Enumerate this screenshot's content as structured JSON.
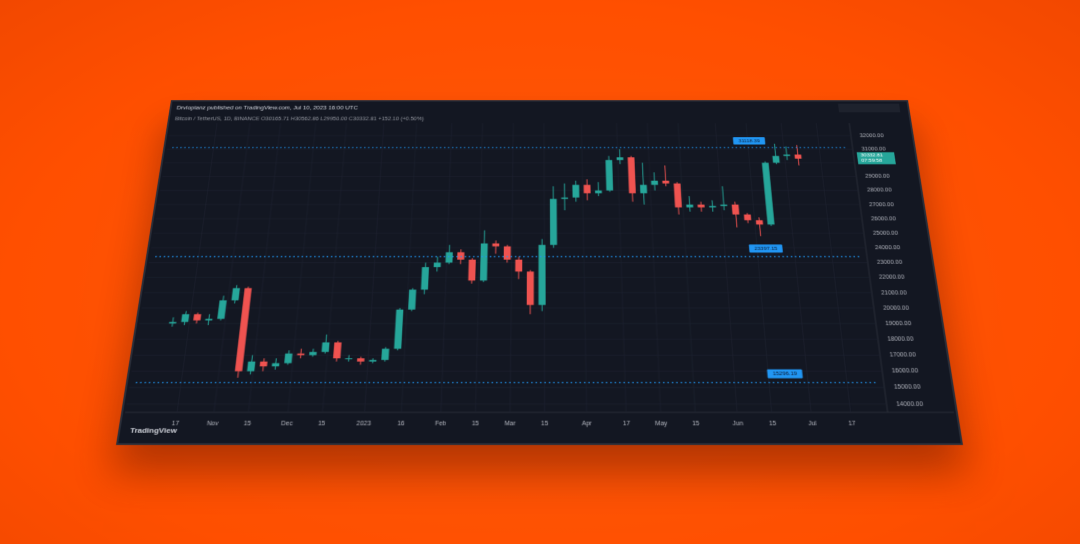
{
  "chart_data": {
    "type": "candlestick",
    "title": "Drvlopianz published on TradingView.com, Jul 10, 2023 16:00 UTC",
    "subtitle": "Bitcoin / TetherUS, 1D, BINANCE  O30165.71 H30562.86 L29950.00 C30332.81 +152.10 (+0.50%)",
    "watermark": "TradingView",
    "up_color": "#26a69a",
    "down_color": "#ef5350",
    "level_color": "#2196f3",
    "grid": true,
    "x": [
      0,
      5,
      10,
      15,
      20,
      25,
      30,
      35,
      40,
      45,
      50,
      55,
      60,
      65,
      70,
      75,
      80,
      85,
      90,
      95,
      100,
      105,
      110,
      115,
      120,
      125,
      130,
      135,
      140,
      145,
      150,
      155,
      160,
      165,
      170,
      175,
      180,
      185,
      190,
      195,
      200,
      205,
      210,
      215,
      220,
      225,
      230,
      235,
      240,
      245,
      250,
      255,
      260,
      265,
      270
    ],
    "open": [
      19000,
      19100,
      19600,
      19200,
      19300,
      20500,
      21300,
      16000,
      16600,
      16300,
      16500,
      17100,
      17000,
      17200,
      17800,
      16800,
      16800,
      16600,
      16700,
      17400,
      19900,
      21200,
      22700,
      23000,
      23700,
      23200,
      21800,
      24300,
      24100,
      23200,
      22400,
      20200,
      24200,
      27400,
      27500,
      28400,
      27800,
      28000,
      30200,
      30400,
      27800,
      28400,
      28700,
      28500,
      26800,
      27000,
      26800,
      26900,
      27000,
      26300,
      25900,
      25600,
      30000,
      30500,
      30600
    ],
    "high": [
      19400,
      19800,
      19700,
      19600,
      20800,
      21500,
      21400,
      17000,
      16800,
      16800,
      17300,
      17400,
      17400,
      18300,
      17900,
      17000,
      16900,
      16800,
      17500,
      20000,
      21300,
      23000,
      23400,
      24200,
      23900,
      23300,
      25200,
      24500,
      24200,
      23400,
      22500,
      24600,
      28300,
      28500,
      28700,
      28800,
      28600,
      30500,
      31000,
      30500,
      30000,
      29300,
      29800,
      28600,
      27600,
      27200,
      27300,
      28300,
      27200,
      26400,
      26100,
      30100,
      31400,
      31200,
      31300
    ],
    "low": [
      18800,
      18900,
      19000,
      18900,
      19200,
      20300,
      15600,
      15800,
      16000,
      16100,
      16400,
      16800,
      16900,
      17100,
      16600,
      16600,
      16400,
      16500,
      16600,
      17300,
      19800,
      20900,
      22400,
      22900,
      22900,
      21600,
      21700,
      23600,
      23000,
      21900,
      19600,
      19800,
      24000,
      26600,
      27200,
      27300,
      27600,
      27900,
      29900,
      27200,
      27000,
      28000,
      28300,
      26300,
      26500,
      26500,
      26500,
      26600,
      25400,
      25700,
      24800,
      25500,
      29900,
      30200,
      29800
    ],
    "close": [
      19100,
      19600,
      19200,
      19300,
      20500,
      21300,
      16000,
      16600,
      16300,
      16500,
      17100,
      17000,
      17200,
      17800,
      16800,
      16800,
      16600,
      16700,
      17400,
      19900,
      21200,
      22700,
      23000,
      23700,
      23200,
      21800,
      24300,
      24100,
      23200,
      22400,
      20200,
      24200,
      27400,
      27500,
      28400,
      27800,
      28000,
      30200,
      30400,
      27800,
      28400,
      28700,
      28500,
      26800,
      27000,
      26800,
      26900,
      27000,
      26300,
      25900,
      25600,
      30000,
      30500,
      30600,
      30300
    ],
    "xlim": [
      -14,
      295
    ],
    "xticks": [
      {
        "value": 7,
        "label": "17"
      },
      {
        "value": 22,
        "label": "Nov"
      },
      {
        "value": 36,
        "label": "15"
      },
      {
        "value": 52,
        "label": "Dec"
      },
      {
        "value": 66,
        "label": "15"
      },
      {
        "value": 83,
        "label": "2023"
      },
      {
        "value": 98,
        "label": "16"
      },
      {
        "value": 114,
        "label": "Feb"
      },
      {
        "value": 128,
        "label": "15"
      },
      {
        "value": 142,
        "label": "Mar"
      },
      {
        "value": 156,
        "label": "15"
      },
      {
        "value": 173,
        "label": "Apr"
      },
      {
        "value": 189,
        "label": "17"
      },
      {
        "value": 203,
        "label": "May"
      },
      {
        "value": 217,
        "label": "15"
      },
      {
        "value": 234,
        "label": "Jun"
      },
      {
        "value": 248,
        "label": "15"
      },
      {
        "value": 264,
        "label": "Jul"
      },
      {
        "value": 280,
        "label": "17"
      }
    ],
    "ylim": [
      13500,
      32500
    ],
    "yticks": [
      {
        "value": 14000,
        "label": "14000.00"
      },
      {
        "value": 15000,
        "label": "15000.00"
      },
      {
        "value": 16000,
        "label": "16000.00"
      },
      {
        "value": 17000,
        "label": "17000.00"
      },
      {
        "value": 18000,
        "label": "18000.00"
      },
      {
        "value": 19000,
        "label": "19000.00"
      },
      {
        "value": 20000,
        "label": "20000.00"
      },
      {
        "value": 21000,
        "label": "21000.00"
      },
      {
        "value": 22000,
        "label": "22000.00"
      },
      {
        "value": 23000,
        "label": "23000.00"
      },
      {
        "value": 24000,
        "label": "24000.00"
      },
      {
        "value": 25000,
        "label": "25000.00"
      },
      {
        "value": 26000,
        "label": "26000.00"
      },
      {
        "value": 27000,
        "label": "27000.00"
      },
      {
        "value": 28000,
        "label": "28000.00"
      },
      {
        "value": 29000,
        "label": "29000.00"
      },
      {
        "value": 30000,
        "label": "30000.00"
      },
      {
        "value": 31000,
        "label": "31000.00"
      },
      {
        "value": 32000,
        "label": "32000.00"
      }
    ],
    "levels": [
      31118.39,
      23397.15,
      15296.19
    ],
    "last_price": 30332.81,
    "countdown": "07:59:58"
  }
}
